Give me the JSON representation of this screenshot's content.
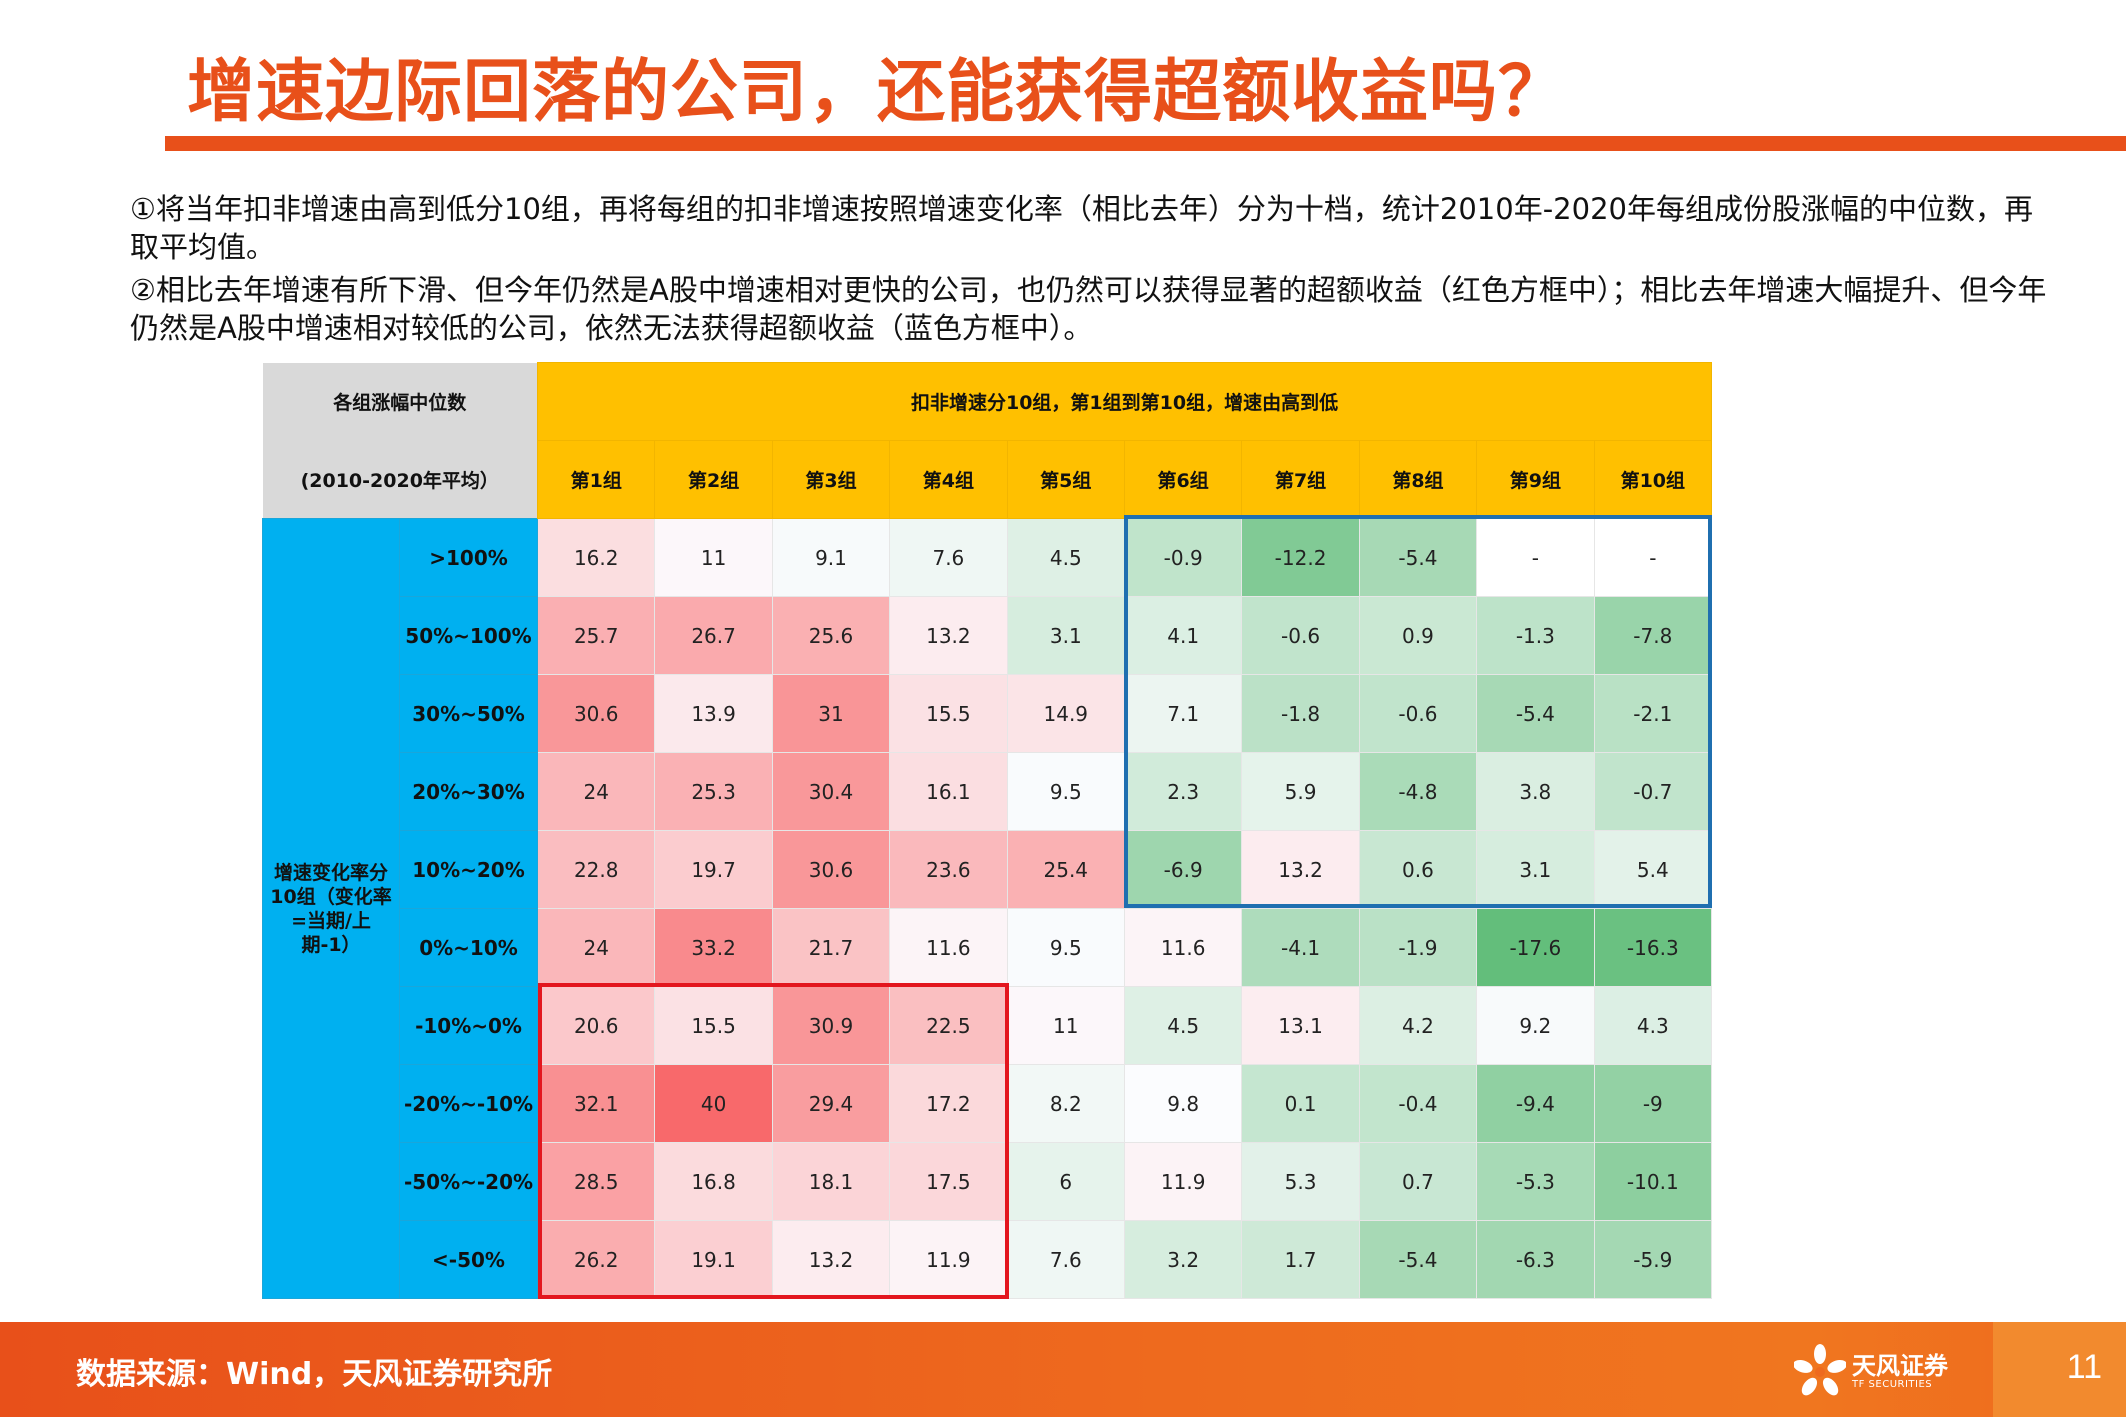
{
  "title": "增速边际回落的公司，还能获得超额收益吗？",
  "paragraphs": [
    "①将当年扣非增速由高到低分10组，再将每组的扣非增速按照增速变化率（相比去年）分为十档，统计2010年-2020年每组成份股涨幅的中位数，再取平均值。",
    "②相比去年增速有所下滑、但今年仍然是A股中增速相对更快的公司，也仍然可以获得显著的超额收益（红色方框中）；相比去年增速大幅提升、但今年仍然是A股中增速相对较低的公司，依然无法获得超额收益（蓝色方框中）。"
  ],
  "table": {
    "corner_top": "各组涨幅中位数",
    "corner_bottom": "(2010-2020年平均）",
    "group_header": "扣非增速分10组，第1组到第10组，增速由高到低",
    "side_label": "增速变化率分10组（变化率=当期/上期-1）",
    "columns": [
      "第1组",
      "第2组",
      "第3组",
      "第4组",
      "第5组",
      "第6组",
      "第7组",
      "第8组",
      "第9组",
      "第10组"
    ],
    "rows": [
      {
        "label": ">100%",
        "values": [
          "16.2",
          "11",
          "9.1",
          "7.6",
          "4.5",
          "-0.9",
          "-12.2",
          "-5.4",
          "-",
          "-"
        ]
      },
      {
        "label": "50%~100%",
        "values": [
          "25.7",
          "26.7",
          "25.6",
          "13.2",
          "3.1",
          "4.1",
          "-0.6",
          "0.9",
          "-1.3",
          "-7.8"
        ]
      },
      {
        "label": "30%~50%",
        "values": [
          "30.6",
          "13.9",
          "31",
          "15.5",
          "14.9",
          "7.1",
          "-1.8",
          "-0.6",
          "-5.4",
          "-2.1"
        ]
      },
      {
        "label": "20%~30%",
        "values": [
          "24",
          "25.3",
          "30.4",
          "16.1",
          "9.5",
          "2.3",
          "5.9",
          "-4.8",
          "3.8",
          "-0.7"
        ]
      },
      {
        "label": "10%~20%",
        "values": [
          "22.8",
          "19.7",
          "30.6",
          "23.6",
          "25.4",
          "-6.9",
          "13.2",
          "0.6",
          "3.1",
          "5.4"
        ]
      },
      {
        "label": "0%~10%",
        "values": [
          "24",
          "33.2",
          "21.7",
          "11.6",
          "9.5",
          "11.6",
          "-4.1",
          "-1.9",
          "-17.6",
          "-16.3"
        ]
      },
      {
        "label": "-10%~0%",
        "values": [
          "20.6",
          "15.5",
          "30.9",
          "22.5",
          "11",
          "4.5",
          "13.1",
          "4.2",
          "9.2",
          "4.3"
        ]
      },
      {
        "label": "-20%~-10%",
        "values": [
          "32.1",
          "40",
          "29.4",
          "17.2",
          "8.2",
          "9.8",
          "0.1",
          "-0.4",
          "-9.4",
          "-9"
        ]
      },
      {
        "label": "-50%~-20%",
        "values": [
          "28.5",
          "16.8",
          "18.1",
          "17.5",
          "6",
          "11.9",
          "5.3",
          "0.7",
          "-5.3",
          "-10.1"
        ]
      },
      {
        "label": "<-50%",
        "values": [
          "26.2",
          "19.1",
          "13.2",
          "11.9",
          "7.6",
          "3.2",
          "1.7",
          "-5.4",
          "-6.3",
          "-5.9"
        ]
      }
    ]
  },
  "colors": {
    "accent": "#E8501A",
    "header_yellow": "#FFC000",
    "row_blue": "#00B0F0",
    "box_blue": "#1F6FB0",
    "box_red": "#E3161E",
    "heat_high": "#F8696B",
    "heat_low": "#63BE7B"
  },
  "footer": {
    "source": "数据来源：Wind，天风证券研究所",
    "brand_name": "天风证券",
    "brand_sub": "TF SECURITIES",
    "page_number": "11"
  }
}
